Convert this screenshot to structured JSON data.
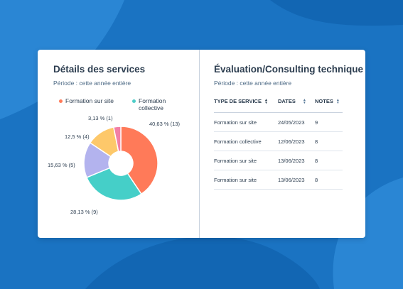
{
  "left_panel": {
    "title": "Détails des services",
    "period": "Période : cette année entière",
    "legend": [
      {
        "label": "Formation sur site",
        "color": "#ff7a59"
      },
      {
        "label": "Formation collective",
        "color": "#4ecdc8"
      }
    ]
  },
  "chart_data": {
    "type": "pie",
    "donut": true,
    "slices": [
      {
        "value": 40.63,
        "count": 13,
        "label": "40,63 % (13)",
        "color": "#ff7a59"
      },
      {
        "value": 28.13,
        "count": 9,
        "label": "28,13 % (9)",
        "color": "#45cfc8"
      },
      {
        "value": 15.63,
        "count": 5,
        "label": "15,63 % (5)",
        "color": "#b3b3ee"
      },
      {
        "value": 12.5,
        "count": 4,
        "label": "12,5 % (4)",
        "color": "#fdc86a"
      },
      {
        "value": 3.13,
        "count": 1,
        "label": "3,13 % (1)",
        "color": "#f27fa5"
      }
    ]
  },
  "right_panel": {
    "title": "Évaluation/Consulting technique",
    "period": "Période : cette année entière",
    "table": {
      "headers": [
        "TYPE DE SERVICE",
        "DATES",
        "NOTES"
      ],
      "rows": [
        [
          "Formation sur site",
          "24/05/2023",
          "9"
        ],
        [
          "Formation collective",
          "12/06/2023",
          "8"
        ],
        [
          "Formation sur site",
          "13/06/2023",
          "8"
        ],
        [
          "Formation sur site",
          "13/06/2023",
          "8"
        ]
      ]
    }
  }
}
